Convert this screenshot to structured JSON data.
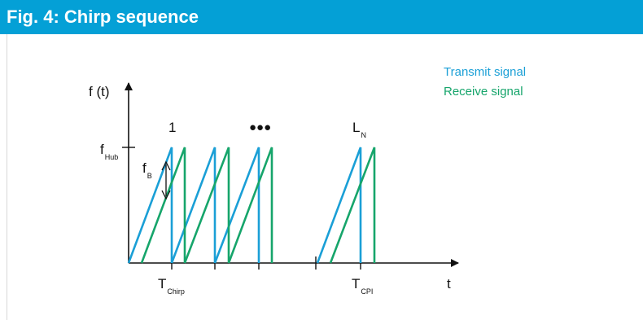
{
  "header": {
    "title": "Fig. 4: Chirp sequence"
  },
  "colors": {
    "header_bg": "#04a0d6",
    "transmit": "#1a9fd6",
    "receive": "#16a56b",
    "axis": "#111111"
  },
  "legend": {
    "transmit_label": "Transmit signal",
    "receive_label": "Receive signal"
  },
  "axes": {
    "y_label": "f (t)",
    "x_label": "t",
    "f_hub_main": "f",
    "f_hub_sub": "Hub",
    "f_b_main": "f",
    "f_b_sub": "B",
    "t_chirp_main": "T",
    "t_chirp_sub": "Chirp",
    "t_cpi_main": "T",
    "t_cpi_sub": "CPI"
  },
  "annotations": {
    "first_chirp": "1",
    "ellipsis": "●●●",
    "last_chirp_main": "L",
    "last_chirp_sub": "N"
  }
}
